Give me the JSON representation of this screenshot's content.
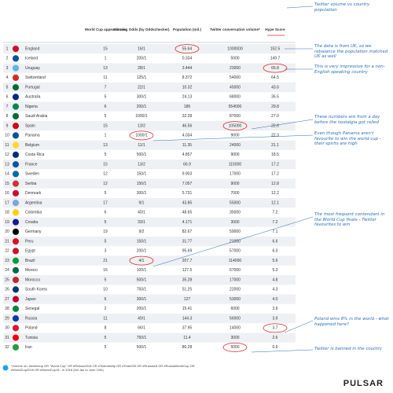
{
  "table": {
    "headers": [
      "World Cup appearances",
      "Winning Odds (by Oddschecker)",
      "Population (mil.)",
      "Twitter conversation volume*",
      "Hype Score"
    ],
    "rows": [
      [
        "1",
        "England",
        "15",
        "16/1",
        "55.64",
        "1000000",
        "152.5"
      ],
      [
        "2",
        "Iceland",
        "1",
        "200/1",
        "0.334",
        "5000",
        "149.7"
      ],
      [
        "3",
        "Uruguay",
        "13",
        "28/1",
        "3.444",
        "23000",
        "66.8"
      ],
      [
        "4",
        "Switzerland",
        "11",
        "125/1",
        "8.372",
        "54000",
        "64.5"
      ],
      [
        "5",
        "Portugal",
        "7",
        "22/1",
        "10.32",
        "45000",
        "43.6"
      ],
      [
        "6",
        "Australia",
        "5",
        "300/1",
        "24.13",
        "68000",
        "36.5"
      ],
      [
        "7",
        "Nigeria",
        "6",
        "200/1",
        "186",
        "554000",
        "29.8"
      ],
      [
        "8",
        "Saudi Arabia",
        "5",
        "1000/1",
        "32.28",
        "87000",
        "27.0"
      ],
      [
        "9",
        "Spain",
        "15",
        "13/2",
        "46.56",
        "105000",
        "22.6"
      ],
      [
        "10",
        "Panama",
        "1",
        "1000/1",
        "4.034",
        "9000",
        "22.3"
      ],
      [
        "11",
        "Belgium",
        "13",
        "11/1",
        "11.35",
        "24000",
        "21.1"
      ],
      [
        "12",
        "Costa Rica",
        "5",
        "500/1",
        "4.857",
        "9000",
        "18.5"
      ],
      [
        "13",
        "France",
        "15",
        "13/2",
        "66.9",
        "115000",
        "17.2"
      ],
      [
        "14",
        "Sweden",
        "12",
        "150/1",
        "9.903",
        "17000",
        "17.2"
      ],
      [
        "15",
        "Serbia",
        "12",
        "150/1",
        "7.057",
        "9000",
        "12.8"
      ],
      [
        "16",
        "Denmark",
        "5",
        "300/1",
        "5.731",
        "7000",
        "12.2"
      ],
      [
        "17",
        "Argentina",
        "17",
        "9/1",
        "43.85",
        "55000",
        "12.1"
      ],
      [
        "18",
        "Colombia",
        "6",
        "40/1",
        "48.65",
        "35000",
        "7.2"
      ],
      [
        "19",
        "Croatia",
        "5",
        "33/1",
        "4.171",
        "3000",
        "7.2"
      ],
      [
        "20",
        "Germany",
        "19",
        "9/2",
        "82.67",
        "59000",
        "7.1"
      ],
      [
        "21",
        "Peru",
        "5",
        "150/1",
        "31.77",
        "21000",
        "6.6"
      ],
      [
        "22",
        "Egypt",
        "3",
        "200/1",
        "95.69",
        "57000",
        "6.0"
      ],
      [
        "23",
        "Brazil",
        "21",
        "4/1",
        "207.7",
        "114000",
        "5.6"
      ],
      [
        "24",
        "Mexico",
        "16",
        "100/1",
        "127.5",
        "67000",
        "5.3"
      ],
      [
        "25",
        "Morocco",
        "5",
        "500/1",
        "35.28",
        "17000",
        "4.8"
      ],
      [
        "26",
        "South Korea",
        "10",
        "750/1",
        "51.25",
        "22000",
        "4.3"
      ],
      [
        "27",
        "Japan",
        "6",
        "300/1",
        "127",
        "53000",
        "4.0"
      ],
      [
        "28",
        "Senegal",
        "2",
        "200/1",
        "15.41",
        "6000",
        "3.9"
      ],
      [
        "29",
        "Russia",
        "11",
        "40/1",
        "144.3",
        "56000",
        "3.9"
      ],
      [
        "30",
        "Poland",
        "8",
        "66/1",
        "37.95",
        "14000",
        "3.7"
      ],
      [
        "31",
        "Tunisia",
        "5",
        "750/1",
        "11.4",
        "3000",
        "2.6"
      ],
      [
        "32",
        "Iran",
        "5",
        "500/1",
        "80.28",
        "5000",
        "0.6"
      ]
    ]
  },
  "annotations": [
    "Twitter volume vs country population",
    "The data is from UK, so we rebalance the population matched UK as well",
    "This is very impressive for a non-English speaking country",
    "These numbers are from a day before the nostalgia got rolled",
    "Even though Panama aren't favourite to win the world cup - their spirits are high",
    "The most frequent contendant in the World Cup finals - Twitter favourites to win",
    "Poland wins 8% in the world - what happened here?",
    "Twitter is banned in the country"
  ],
  "footnote": "*Volume on: #worldcup OR \"World Cup\" OR #Russia2018 OR #Teamdiship OR #TeamGB OR #Russia18 OR #RussiaWorldCup OR #WorldCup2018 OR #WorldCup18 - in 2018 (full Jan to June 12th)",
  "logo": "PULSAR"
}
